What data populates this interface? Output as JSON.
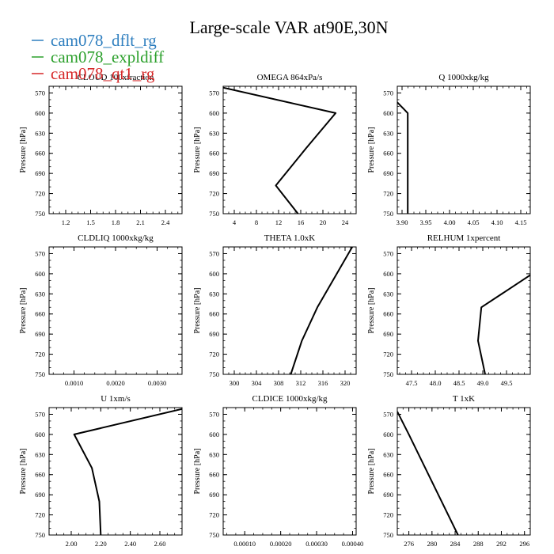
{
  "title": "Large-scale VAR at90E,30N",
  "legend": [
    {
      "name": "cam078_dflt_rg",
      "color": "#2f7fbf"
    },
    {
      "name": "cam078_expldiff",
      "color": "#2ca02c"
    },
    {
      "name": "cam078_qt1_rg",
      "color": "#d62728"
    }
  ],
  "line_color": "#000000",
  "chart_data": [
    {
      "type": "line",
      "title": "CLOUD 100xfraction",
      "ylabel": "Pressure [hPa]",
      "xlim": [
        1.0,
        2.6
      ],
      "ylim": [
        750,
        560
      ],
      "xticks": [
        1.2,
        1.5,
        1.8,
        2.1,
        2.4
      ],
      "xticklabels": [
        "1.2",
        "1.5",
        "1.8",
        "2.1",
        "2.4"
      ],
      "yticks": [
        570,
        600,
        630,
        660,
        690,
        720,
        750
      ],
      "yticklabels": [
        "570",
        "600",
        "630",
        "660",
        "690",
        "720",
        "750"
      ],
      "series": [],
      "grid": false
    },
    {
      "type": "line",
      "title": "OMEGA  864xPa/s",
      "ylabel": "Pressure [hPa]",
      "xlim": [
        2,
        26
      ],
      "ylim": [
        750,
        560
      ],
      "xticks": [
        4,
        8,
        12,
        16,
        20,
        24
      ],
      "xticklabels": [
        "4",
        "8",
        "12",
        "16",
        "20",
        "24"
      ],
      "yticks": [
        570,
        600,
        630,
        660,
        690,
        720,
        750
      ],
      "yticklabels": [
        "570",
        "600",
        "630",
        "660",
        "690",
        "720",
        "750"
      ],
      "series": [
        {
          "values": [
            [
              2.0,
              562
            ],
            [
              22.3,
              600
            ],
            [
              17.0,
              652
            ],
            [
              11.5,
              708
            ],
            [
              15.5,
              750
            ]
          ]
        }
      ],
      "grid": false
    },
    {
      "type": "line",
      "title": "Q  1000xkg/kg",
      "ylabel": "Pressure [hPa]",
      "xlim": [
        3.89,
        4.17
      ],
      "ylim": [
        750,
        560
      ],
      "xticks": [
        3.9,
        3.95,
        4.0,
        4.05,
        4.1,
        4.15
      ],
      "xticklabels": [
        "3.90",
        "3.95",
        "4.00",
        "4.05",
        "4.10",
        "4.15"
      ],
      "yticks": [
        570,
        600,
        630,
        660,
        690,
        720,
        750
      ],
      "yticklabels": [
        "570",
        "600",
        "630",
        "660",
        "690",
        "720",
        "750"
      ],
      "series": [
        {
          "values": [
            [
              3.89,
              584
            ],
            [
              3.912,
              600
            ],
            [
              3.912,
              750
            ]
          ]
        }
      ],
      "grid": false
    },
    {
      "type": "line",
      "title": "CLDLIQ  1000xkg/kg",
      "ylabel": "Pressure [hPa]",
      "xlim": [
        0.0004,
        0.0036
      ],
      "ylim": [
        750,
        560
      ],
      "xticks": [
        0.001,
        0.002,
        0.003
      ],
      "xticklabels": [
        "0.0010",
        "0.0020",
        "0.0030"
      ],
      "yticks": [
        570,
        600,
        630,
        660,
        690,
        720,
        750
      ],
      "yticklabels": [
        "570",
        "600",
        "630",
        "660",
        "690",
        "720",
        "750"
      ],
      "series": [],
      "grid": false
    },
    {
      "type": "line",
      "title": "THETA  1.0xK",
      "ylabel": "Pressure [hPa]",
      "xlim": [
        298,
        322
      ],
      "ylim": [
        750,
        560
      ],
      "xticks": [
        300,
        304,
        308,
        312,
        316,
        320
      ],
      "xticklabels": [
        "300",
        "304",
        "308",
        "312",
        "316",
        "320"
      ],
      "yticks": [
        570,
        600,
        630,
        660,
        690,
        720,
        750
      ],
      "yticklabels": [
        "570",
        "600",
        "630",
        "660",
        "690",
        "720",
        "750"
      ],
      "series": [
        {
          "values": [
            [
              321.3,
              560
            ],
            [
              315.0,
              650
            ],
            [
              312.2,
              700
            ],
            [
              310.2,
              750
            ]
          ]
        }
      ],
      "grid": false
    },
    {
      "type": "line",
      "title": "RELHUM  1xpercent",
      "ylabel": "Pressure [hPa]",
      "xlim": [
        47.2,
        50.0
      ],
      "ylim": [
        750,
        560
      ],
      "xticks": [
        47.5,
        48.0,
        48.5,
        49.0,
        49.5
      ],
      "xticklabels": [
        "47.5",
        "48.0",
        "48.5",
        "49.0",
        "49.5"
      ],
      "yticks": [
        570,
        600,
        630,
        660,
        690,
        720,
        750
      ],
      "yticklabels": [
        "570",
        "600",
        "630",
        "660",
        "690",
        "720",
        "750"
      ],
      "series": [
        {
          "values": [
            [
              50.0,
              602
            ],
            [
              48.97,
              650
            ],
            [
              48.9,
              700
            ],
            [
              49.05,
              750
            ]
          ]
        }
      ],
      "grid": false
    },
    {
      "type": "line",
      "title": "U  1xm/s",
      "ylabel": "Pressure [hPa]",
      "xlim": [
        1.85,
        2.75
      ],
      "ylim": [
        750,
        560
      ],
      "xticks": [
        2.0,
        2.2,
        2.4,
        2.6
      ],
      "xticklabels": [
        "2.00",
        "2.20",
        "2.40",
        "2.60"
      ],
      "yticks": [
        570,
        600,
        630,
        660,
        690,
        720,
        750
      ],
      "yticklabels": [
        "570",
        "600",
        "630",
        "660",
        "690",
        "720",
        "750"
      ],
      "series": [
        {
          "values": [
            [
              2.75,
              562
            ],
            [
              2.02,
              600
            ],
            [
              2.14,
              650
            ],
            [
              2.19,
              700
            ],
            [
              2.2,
              750
            ]
          ]
        }
      ],
      "grid": false
    },
    {
      "type": "line",
      "title": "CLDICE  1000xkg/kg",
      "ylabel": "Pressure [hPa]",
      "xlim": [
        4e-05,
        0.00041
      ],
      "ylim": [
        750,
        560
      ],
      "xticks": [
        0.0001,
        0.0002,
        0.0003,
        0.0004
      ],
      "xticklabels": [
        "0.00010",
        "0.00020",
        "0.00030",
        "0.00040"
      ],
      "yticks": [
        570,
        600,
        630,
        660,
        690,
        720,
        750
      ],
      "yticklabels": [
        "570",
        "600",
        "630",
        "660",
        "690",
        "720",
        "750"
      ],
      "series": [],
      "grid": false
    },
    {
      "type": "line",
      "title": "T  1xK",
      "ylabel": "Pressure [hPa]",
      "xlim": [
        274,
        297
      ],
      "ylim": [
        750,
        560
      ],
      "xticks": [
        276,
        280,
        284,
        288,
        292,
        296
      ],
      "xticklabels": [
        "276",
        "280",
        "284",
        "288",
        "292",
        "296"
      ],
      "yticks": [
        570,
        600,
        630,
        660,
        690,
        720,
        750
      ],
      "yticklabels": [
        "570",
        "600",
        "630",
        "660",
        "690",
        "720",
        "750"
      ],
      "series": [
        {
          "values": [
            [
              274.0,
              566
            ],
            [
              276.0,
              600
            ],
            [
              284.5,
              750
            ]
          ]
        }
      ],
      "grid": false
    }
  ]
}
